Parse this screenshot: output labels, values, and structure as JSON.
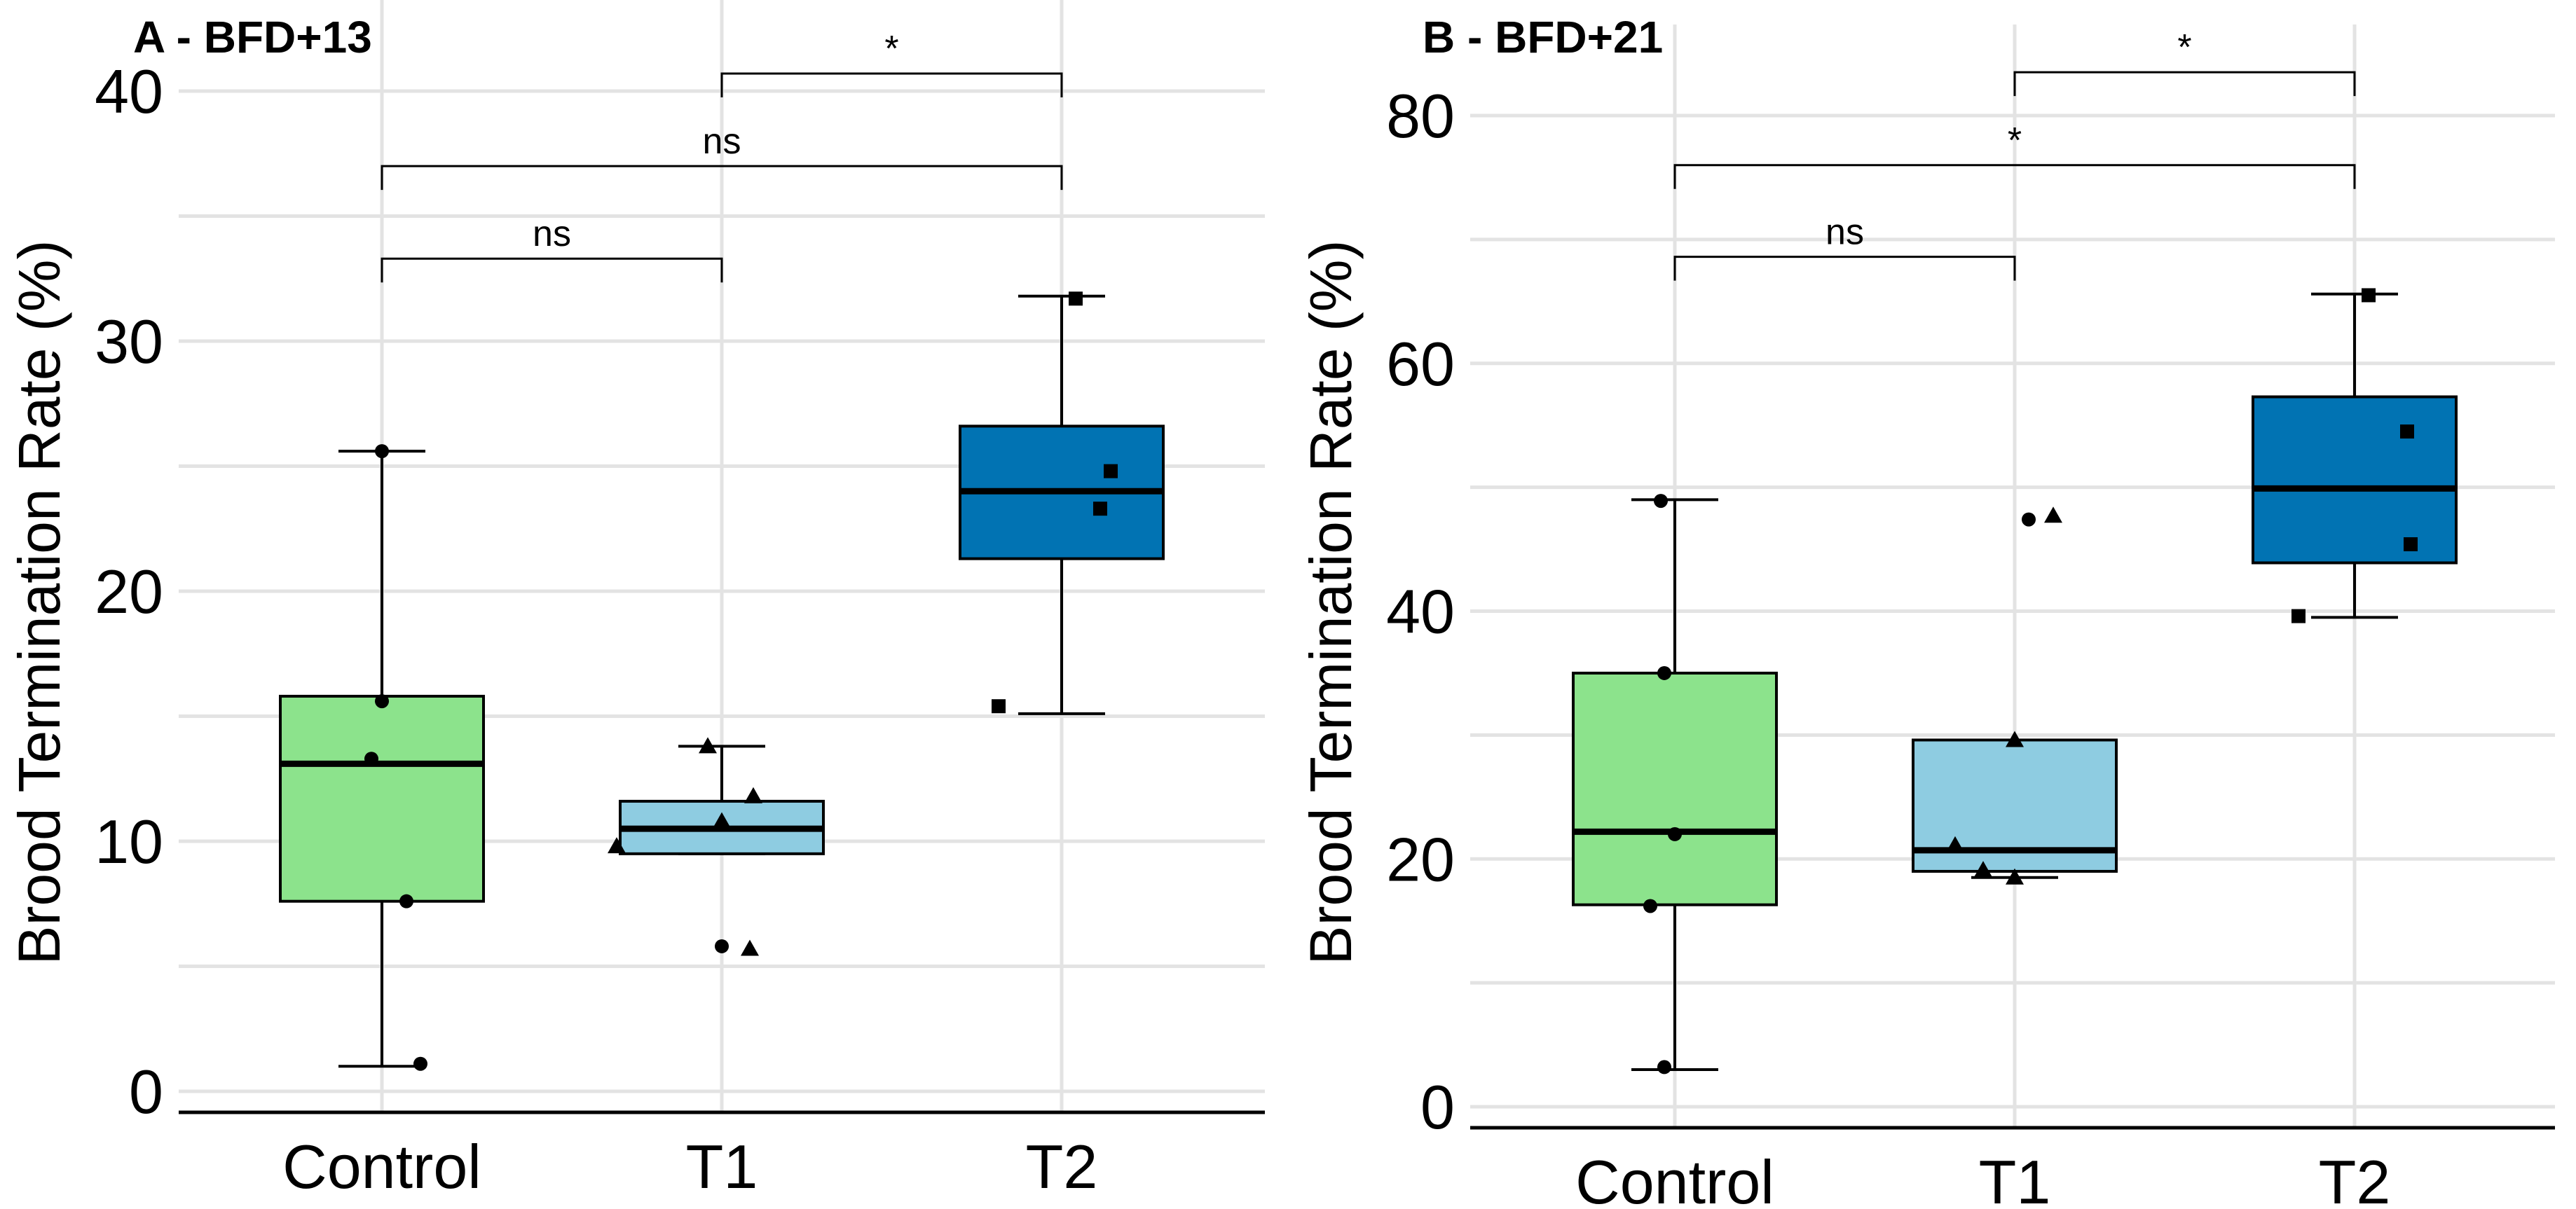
{
  "chart_data": [
    {
      "type": "box",
      "title": "A - BFD+13",
      "xlabel": "",
      "ylabel": "Brood Termination Rate (%)",
      "ylim": [
        0,
        40
      ],
      "yticks": [
        0,
        10,
        20,
        30,
        40
      ],
      "grid": true,
      "legend": "none",
      "categories": [
        "Control",
        "T1",
        "T2"
      ],
      "boxes": [
        {
          "category": "Control",
          "color": "#8CE38C",
          "whisker_low": 1.0,
          "q1": 7.6,
          "median": 13.1,
          "q3": 15.8,
          "whisker_high": 25.6
        },
        {
          "category": "T1",
          "color": "#8ECCE1",
          "whisker_low": 9.5,
          "q1": 9.5,
          "median": 10.5,
          "q3": 11.6,
          "whisker_high": 13.8
        },
        {
          "category": "T2",
          "color": "#0173B3",
          "whisker_low": 15.1,
          "q1": 21.3,
          "median": 24.0,
          "q3": 26.6,
          "whisker_high": 31.8
        }
      ],
      "points": [
        {
          "category": "Control",
          "shape": "circle",
          "values": [
            25.6,
            15.6,
            13.3,
            7.6,
            1.1
          ]
        },
        {
          "category": "T1",
          "shape": "circle",
          "values": [
            5.8
          ]
        },
        {
          "category": "T1",
          "shape": "triangle",
          "values": [
            13.8,
            11.8,
            10.8,
            9.8,
            5.7
          ]
        },
        {
          "category": "T2",
          "shape": "square",
          "values": [
            31.7,
            24.8,
            23.3,
            15.4
          ]
        }
      ],
      "comparisons": [
        {
          "from": "Control",
          "to": "T1",
          "label": "ns",
          "y": 33.3
        },
        {
          "from": "Control",
          "to": "T2",
          "label": "ns",
          "y": 37.0
        },
        {
          "from": "T1",
          "to": "T2",
          "label": "*",
          "y": 40.7
        }
      ]
    },
    {
      "type": "box",
      "title": "B - BFD+21",
      "xlabel": "",
      "ylabel": "Brood Termination Rate (%)",
      "ylim": [
        0,
        80
      ],
      "yticks": [
        0,
        20,
        40,
        60,
        80
      ],
      "grid": true,
      "legend": "none",
      "categories": [
        "Control",
        "T1",
        "T2"
      ],
      "boxes": [
        {
          "category": "Control",
          "color": "#8CE38C",
          "whisker_low": 3.0,
          "q1": 16.3,
          "median": 22.2,
          "q3": 35.0,
          "whisker_high": 49.0
        },
        {
          "category": "T1",
          "color": "#8ECCE1",
          "whisker_low": 18.5,
          "q1": 19.0,
          "median": 20.7,
          "q3": 29.6,
          "whisker_high": 29.6
        },
        {
          "category": "T2",
          "color": "#0173B3",
          "whisker_low": 39.5,
          "q1": 43.9,
          "median": 49.9,
          "q3": 57.3,
          "whisker_high": 65.6
        }
      ],
      "points": [
        {
          "category": "Control",
          "shape": "circle",
          "values": [
            48.9,
            35.0,
            22.0,
            16.2,
            3.2
          ]
        },
        {
          "category": "T1",
          "shape": "circle",
          "values": [
            47.4
          ]
        },
        {
          "category": "T1",
          "shape": "triangle",
          "values": [
            47.7,
            29.6,
            21.1,
            19.1,
            18.5
          ]
        },
        {
          "category": "T2",
          "shape": "square",
          "values": [
            65.5,
            54.5,
            45.4,
            39.6
          ]
        }
      ],
      "comparisons": [
        {
          "from": "Control",
          "to": "T1",
          "label": "ns",
          "y": 68.6
        },
        {
          "from": "Control",
          "to": "T2",
          "label": "*",
          "y": 76.0
        },
        {
          "from": "T1",
          "to": "T2",
          "label": "*",
          "y": 83.5
        }
      ]
    }
  ]
}
